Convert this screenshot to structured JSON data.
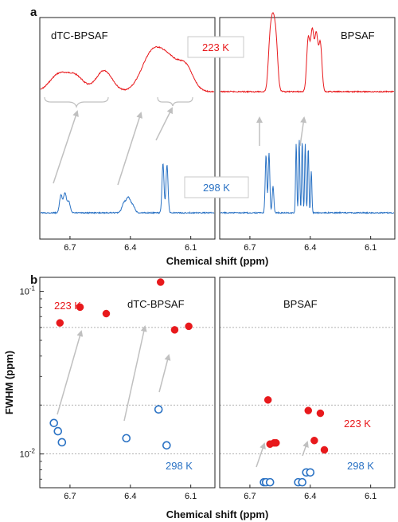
{
  "panel_labels": {
    "a": "a",
    "b": "b"
  },
  "colors": {
    "cold": "#e8191c",
    "warm": "#2a72c4",
    "arrow": "#c0c0c0",
    "grid": "#9a9a9a",
    "axis": "#222222"
  },
  "chart_data": [
    {
      "type": "line",
      "panel": "a",
      "xlabel": "Chemical shift (ppm)",
      "ylabel": "",
      "x_reversed": true,
      "subplots": [
        {
          "title": "dTC-BPSAF",
          "xlim": [
            6.85,
            5.98
          ],
          "xticks": [
            "6.7",
            "6.4",
            "6.1"
          ],
          "tick_values": [
            6.7,
            6.4,
            6.1
          ],
          "series": [
            {
              "name": "223 K",
              "color": "#e8191c",
              "baseline": 0.0,
              "peaks": [
                [
                  6.755,
                  0.18,
                  0.045
                ],
                [
                  6.67,
                  0.15,
                  0.04
                ],
                [
                  6.53,
                  0.22,
                  0.04
                ],
                [
                  6.3,
                  0.32,
                  0.05
                ],
                [
                  6.21,
                  0.33,
                  0.06
                ],
                [
                  6.12,
                  0.18,
                  0.035
                ]
              ]
            },
            {
              "name": "298 K",
              "color": "#2a72c4",
              "baseline": 0.0,
              "peaks": [
                [
                  6.745,
                  0.22,
                  0.007
                ],
                [
                  6.725,
                  0.25,
                  0.007
                ],
                [
                  6.706,
                  0.14,
                  0.007
                ],
                [
                  6.432,
                  0.12,
                  0.01
                ],
                [
                  6.41,
                  0.18,
                  0.01
                ],
                [
                  6.388,
                  0.09,
                  0.01
                ],
                [
                  6.238,
                  0.62,
                  0.005
                ],
                [
                  6.218,
                  0.6,
                  0.005
                ]
              ]
            }
          ]
        },
        {
          "title": "BPSAF",
          "xlim": [
            6.85,
            5.98
          ],
          "xticks": [
            "6.7",
            "6.4",
            "6.1"
          ],
          "tick_values": [
            6.7,
            6.4,
            6.1
          ],
          "series": [
            {
              "name": "223 K",
              "color": "#e8191c",
              "baseline": 0.0,
              "peaks": [
                [
                  6.6,
                  0.5,
                  0.009
                ],
                [
                  6.585,
                  0.58,
                  0.009
                ],
                [
                  6.57,
                  0.48,
                  0.009
                ],
                [
                  6.41,
                  0.55,
                  0.008
                ],
                [
                  6.39,
                  0.62,
                  0.008
                ],
                [
                  6.37,
                  0.58,
                  0.008
                ],
                [
                  6.35,
                  0.5,
                  0.008
                ]
              ]
            },
            {
              "name": "298 K",
              "color": "#2a72c4",
              "baseline": 0.0,
              "peaks": [
                [
                  6.62,
                  0.48,
                  0.004
                ],
                [
                  6.605,
                  0.5,
                  0.004
                ],
                [
                  6.585,
                  0.22,
                  0.004
                ],
                [
                  6.47,
                  0.58,
                  0.003
                ],
                [
                  6.455,
                  0.62,
                  0.003
                ],
                [
                  6.44,
                  0.6,
                  0.003
                ],
                [
                  6.425,
                  0.58,
                  0.003
                ],
                [
                  6.41,
                  0.55,
                  0.003
                ],
                [
                  6.395,
                  0.35,
                  0.003
                ]
              ]
            }
          ]
        }
      ]
    },
    {
      "type": "scatter",
      "panel": "b",
      "xlabel": "Chemical shift (ppm)",
      "ylabel": "FWHM (ppm)",
      "y_scale": "log",
      "ylim": [
        0.0062,
        0.122
      ],
      "yticks": [
        {
          "value": 0.1,
          "label": "10",
          "exp": "-1"
        },
        {
          "value": 0.01,
          "label": "10",
          "exp": "-2"
        }
      ],
      "gridlines_y": [
        0.06,
        0.02,
        0.01
      ],
      "subplots": [
        {
          "title": "dTC-BPSAF",
          "xlim": [
            6.85,
            5.98
          ],
          "xticks": [
            "6.7",
            "6.4",
            "6.1"
          ],
          "tick_values": [
            6.7,
            6.4,
            6.1
          ],
          "series": [
            {
              "name": "223 K",
              "marker": "filled",
              "color": "#e8191c",
              "x": [
                6.75,
                6.65,
                6.52,
                6.25,
                6.18,
                6.11
              ],
              "y": [
                0.064,
                0.08,
                0.073,
                0.114,
                0.058,
                0.061
              ]
            },
            {
              "name": "298 K",
              "marker": "open",
              "color": "#2a72c4",
              "x": [
                6.78,
                6.76,
                6.74,
                6.42,
                6.26,
                6.22
              ],
              "y": [
                0.0155,
                0.0138,
                0.0118,
                0.0125,
                0.0188,
                0.0113
              ]
            }
          ]
        },
        {
          "title": "BPSAF",
          "xlim": [
            6.85,
            5.98
          ],
          "xticks": [
            "6.7",
            "6.4",
            "6.1"
          ],
          "tick_values": [
            6.7,
            6.4,
            6.1
          ],
          "series": [
            {
              "name": "223 K",
              "marker": "filled",
              "color": "#e8191c",
              "x": [
                6.61,
                6.6,
                6.58,
                6.57,
                6.41,
                6.38,
                6.35,
                6.33
              ],
              "y": [
                0.0215,
                0.0115,
                0.0117,
                0.0117,
                0.0185,
                0.0121,
                0.0178,
                0.0106
              ]
            },
            {
              "name": "298 K",
              "marker": "open",
              "color": "#2a72c4",
              "x": [
                6.63,
                6.62,
                6.6,
                6.46,
                6.44,
                6.42,
                6.4
              ],
              "y": [
                0.0067,
                0.0067,
                0.0067,
                0.0067,
                0.0067,
                0.0077,
                0.0077
              ]
            }
          ]
        }
      ]
    }
  ],
  "temp_labels": {
    "cold": "223 K",
    "warm": "298 K"
  }
}
